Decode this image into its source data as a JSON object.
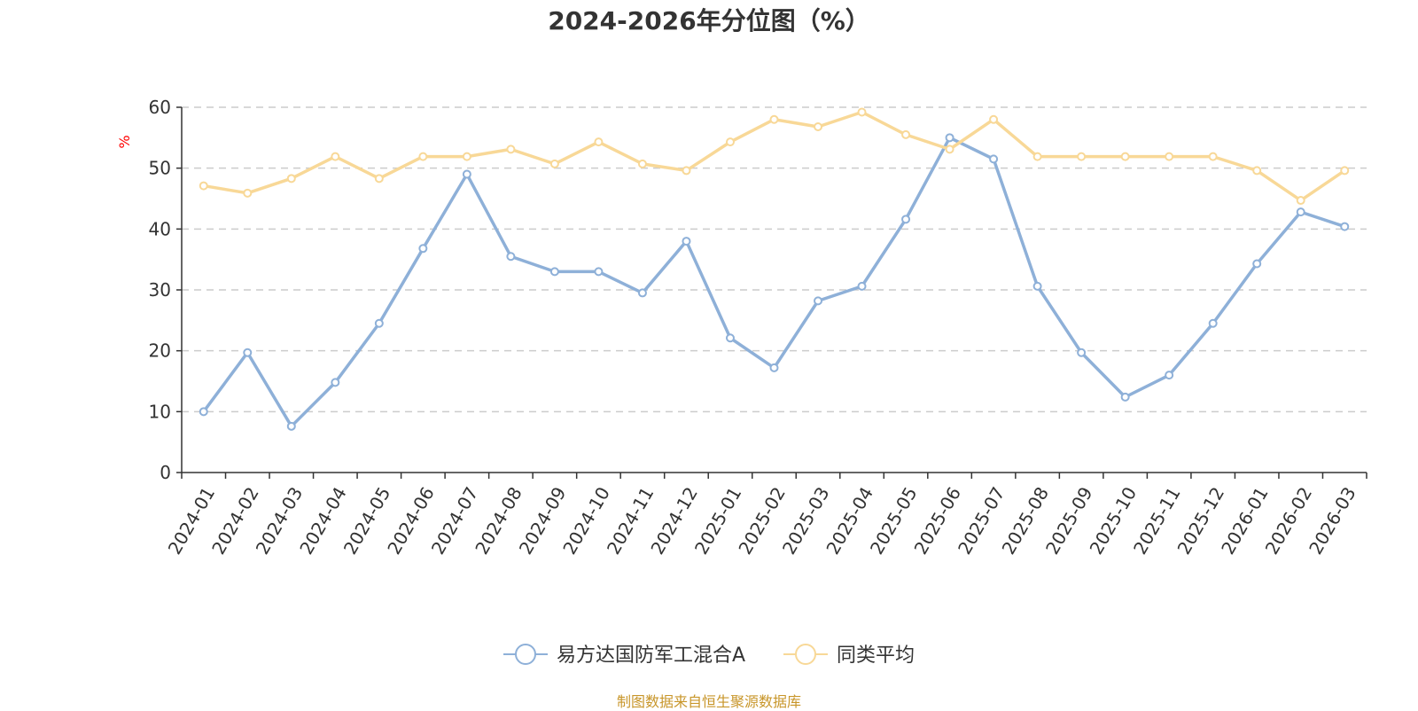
{
  "chart_data": {
    "type": "line",
    "title": "2024-2026年分位图（%）",
    "ylabel": "%",
    "ylim": [
      0,
      60
    ],
    "yticks": [
      "0",
      "10",
      "20",
      "30",
      "40",
      "50",
      "60"
    ],
    "grid": true,
    "legend_position": "bottom-center",
    "categories": [
      "2024-01",
      "2024-02",
      "2024-03",
      "2024-04",
      "2024-05",
      "2024-06",
      "2024-07",
      "2024-08",
      "2024-09",
      "2024-10",
      "2024-11",
      "2024-12",
      "2025-01",
      "2025-02",
      "2025-03",
      "2025-04",
      "2025-05",
      "2025-06",
      "2025-07",
      "2025-08",
      "2025-09",
      "2025-10",
      "2025-11",
      "2025-12",
      "2026-01",
      "2026-02",
      "2026-03"
    ],
    "series": [
      {
        "name": "易方达国防军工混合A",
        "color": "#8eb0d8",
        "values": [
          10.0,
          19.7,
          7.6,
          14.8,
          24.5,
          36.8,
          49.0,
          35.5,
          33.0,
          33.0,
          29.5,
          38.0,
          22.1,
          17.2,
          28.2,
          30.6,
          41.6,
          55.0,
          51.5,
          30.6,
          19.7,
          12.4,
          16.0,
          24.5,
          34.3,
          42.8,
          40.4
        ]
      },
      {
        "name": "同类平均",
        "color": "#f8d897",
        "values": [
          47.1,
          45.9,
          48.3,
          51.9,
          48.3,
          51.9,
          51.9,
          53.1,
          50.7,
          54.3,
          50.7,
          49.6,
          54.3,
          58.0,
          56.8,
          59.2,
          55.5,
          53.1,
          58.0,
          51.9,
          51.9,
          51.9,
          51.9,
          51.9,
          49.6,
          44.7,
          49.6
        ]
      }
    ],
    "source": "制图数据来自恒生聚源数据库"
  }
}
